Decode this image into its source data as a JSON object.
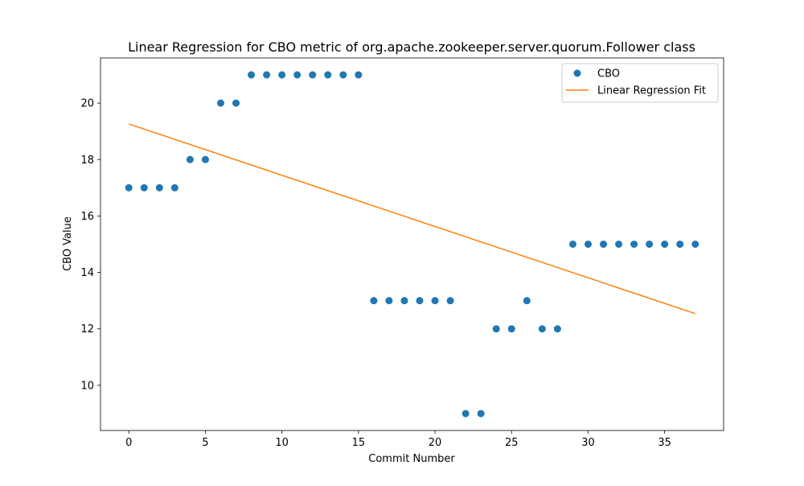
{
  "chart_data": {
    "type": "scatter",
    "title": "Linear Regression for CBO metric of org.apache.zookeeper.server.quorum.Follower class",
    "xlabel": "Commit Number",
    "ylabel": "CBO Value",
    "xlim": [
      -1.85,
      38.85
    ],
    "ylim": [
      8.4,
      21.6
    ],
    "xticks": [
      0,
      5,
      10,
      15,
      20,
      25,
      30,
      35
    ],
    "yticks": [
      10,
      12,
      14,
      16,
      18,
      20
    ],
    "grid": false,
    "legend_position": "top-right",
    "series": [
      {
        "name": "CBO",
        "kind": "scatter",
        "color": "#1f77b4",
        "x": [
          0,
          1,
          2,
          3,
          4,
          5,
          6,
          7,
          8,
          9,
          10,
          11,
          12,
          13,
          14,
          15,
          16,
          17,
          18,
          19,
          20,
          21,
          22,
          23,
          24,
          25,
          26,
          27,
          28,
          29,
          30,
          31,
          32,
          33,
          34,
          35,
          36,
          37
        ],
        "y": [
          17,
          17,
          17,
          17,
          18,
          18,
          20,
          20,
          21,
          21,
          21,
          21,
          21,
          21,
          21,
          21,
          13,
          13,
          13,
          13,
          13,
          13,
          9,
          9,
          12,
          12,
          13,
          12,
          12,
          15,
          15,
          15,
          15,
          15,
          15,
          15,
          15,
          15
        ]
      },
      {
        "name": "Linear Regression Fit",
        "kind": "line",
        "color": "#ff7f0e",
        "x": [
          0,
          37
        ],
        "y": [
          19.26,
          12.54
        ]
      }
    ]
  }
}
